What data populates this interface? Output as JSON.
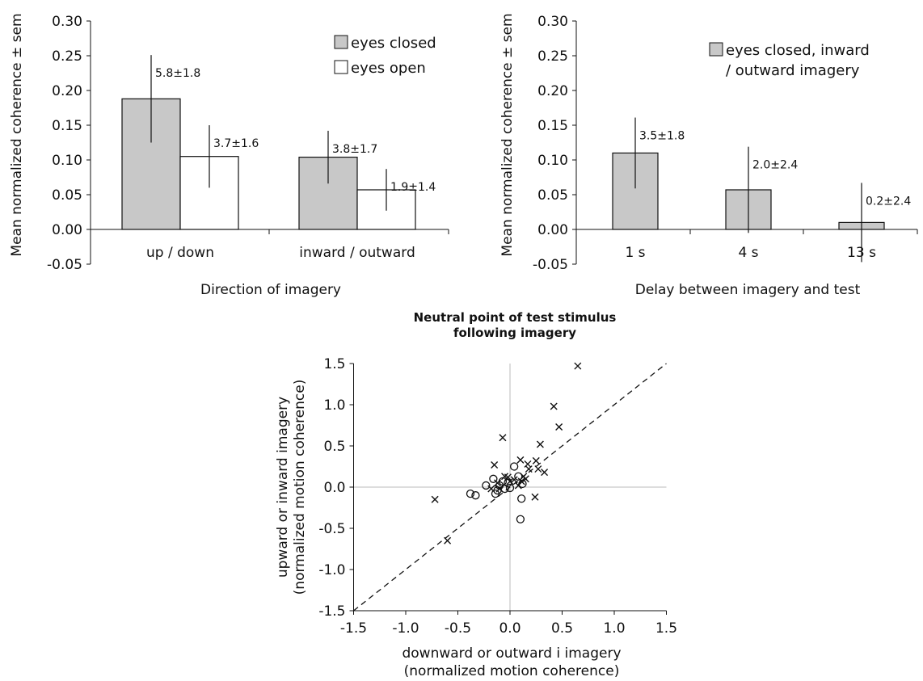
{
  "colors": {
    "eyes_closed": "#c8c8c8",
    "eyes_open": "#ffffff",
    "stroke": "#111111",
    "zero_line": "#bbbbbb"
  },
  "chart_data": [
    {
      "type": "bar",
      "categories": [
        "up / down",
        "inward / outward"
      ],
      "xlabel": "Direction of imagery",
      "ylabel": "Mean normalized coherence ± sem",
      "ylim": [
        -0.05,
        0.3
      ],
      "yticks": [
        "0.30",
        "0.25",
        "0.20",
        "0.15",
        "0.10",
        "0.05",
        "0.00",
        "-0.05"
      ],
      "legend_position": "top-right",
      "series": [
        {
          "name": "eyes closed",
          "color": "#c8c8c8",
          "values": [
            0.188,
            0.104
          ],
          "err": [
            0.063,
            0.038
          ],
          "labels": [
            "5.8±1.8",
            "3.8±1.7"
          ]
        },
        {
          "name": "eyes open",
          "color": "#ffffff",
          "values": [
            0.105,
            0.057
          ],
          "err": [
            0.045,
            0.03
          ],
          "labels": [
            "3.7±1.6",
            "1.9±1.4"
          ]
        }
      ]
    },
    {
      "type": "bar",
      "categories": [
        "1 s",
        "4 s",
        "13 s"
      ],
      "xlabel": "Delay between imagery and test",
      "ylabel": "Mean normalized coherence ± sem",
      "ylim": [
        -0.05,
        0.3
      ],
      "yticks": [
        "0.30",
        "0.25",
        "0.20",
        "0.15",
        "0.10",
        "0.05",
        "0.00",
        "-0.05"
      ],
      "legend_position": "top-right",
      "series": [
        {
          "name": "eyes closed, inward / outward imagery",
          "legend_lines": [
            "eyes closed, inward",
            "/ outward imagery"
          ],
          "color": "#c8c8c8",
          "values": [
            0.11,
            0.057,
            0.01
          ],
          "err": [
            0.051,
            0.062,
            0.057
          ],
          "labels": [
            "3.5±1.8",
            "2.0±2.4",
            "0.2±2.4"
          ]
        }
      ]
    },
    {
      "type": "scatter",
      "title_lines": [
        "Neutral point of test stimulus",
        "following imagery"
      ],
      "xlabel_lines": [
        "downward or outward i imagery",
        "(normalized motion coherence)"
      ],
      "ylabel_lines": [
        "upward or inward imagery",
        "(normalized motion coherence)"
      ],
      "xlim": [
        -1.5,
        1.5
      ],
      "ylim": [
        -1.5,
        1.5
      ],
      "xticks": [
        "-1.5",
        "-1.0",
        "-0.5",
        "0.0",
        "0.5",
        "1.0",
        "1.5"
      ],
      "yticks": [
        "1.5",
        "1.0",
        "0.5",
        "0.0",
        "-0.5",
        "-1.0",
        "-1.5"
      ],
      "reference_line": "y = x (dashed)",
      "series": [
        {
          "marker": "x",
          "points": [
            [
              0.65,
              1.47
            ],
            [
              0.42,
              0.98
            ],
            [
              0.47,
              0.73
            ],
            [
              0.29,
              0.52
            ],
            [
              -0.07,
              0.6
            ],
            [
              -0.72,
              -0.15
            ],
            [
              -0.6,
              -0.65
            ],
            [
              0.1,
              0.33
            ],
            [
              0.17,
              0.28
            ],
            [
              0.18,
              0.22
            ],
            [
              0.25,
              0.32
            ],
            [
              0.27,
              0.22
            ],
            [
              0.33,
              0.18
            ],
            [
              0.24,
              -0.12
            ],
            [
              0.15,
              0.1
            ],
            [
              -0.15,
              0.27
            ],
            [
              -0.18,
              -0.02
            ],
            [
              -0.12,
              0.05
            ],
            [
              -0.05,
              0.13
            ],
            [
              0.0,
              0.07
            ],
            [
              0.04,
              0.09
            ],
            [
              0.08,
              0.02
            ],
            [
              0.11,
              0.07
            ],
            [
              -0.1,
              -0.02
            ],
            [
              -0.02,
              0.12
            ],
            [
              0.13,
              0.13
            ]
          ]
        },
        {
          "marker": "o",
          "points": [
            [
              0.1,
              -0.39
            ],
            [
              0.11,
              -0.14
            ],
            [
              -0.38,
              -0.08
            ],
            [
              -0.33,
              -0.1
            ],
            [
              -0.23,
              0.02
            ],
            [
              -0.16,
              0.1
            ],
            [
              -0.14,
              -0.08
            ],
            [
              -0.12,
              -0.04
            ],
            [
              -0.1,
              0.02
            ],
            [
              -0.07,
              0.07
            ],
            [
              -0.05,
              -0.02
            ],
            [
              0.0,
              -0.01
            ],
            [
              0.04,
              0.25
            ],
            [
              0.08,
              0.13
            ],
            [
              0.12,
              0.04
            ],
            [
              -0.02,
              0.05
            ]
          ]
        }
      ]
    }
  ]
}
